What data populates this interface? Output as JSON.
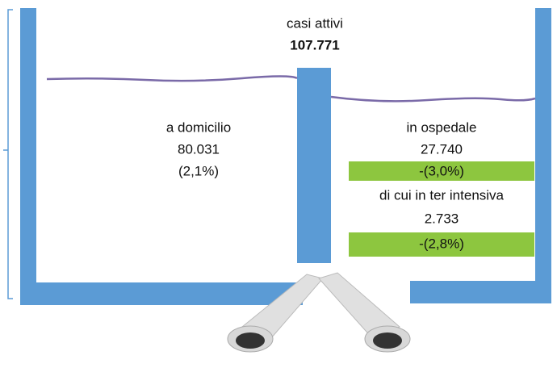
{
  "header": {
    "title": "casi attivi",
    "total": "107.771"
  },
  "left": {
    "label": "a domicilio",
    "value": "80.031",
    "change": "(2,1%)"
  },
  "right": {
    "label": "in ospedale",
    "value": "27.740",
    "change": "-(3,0%)",
    "sub_label": "di cui in ter intensiva",
    "sub_value": "2.733",
    "sub_change": "-(2,8%)"
  }
}
